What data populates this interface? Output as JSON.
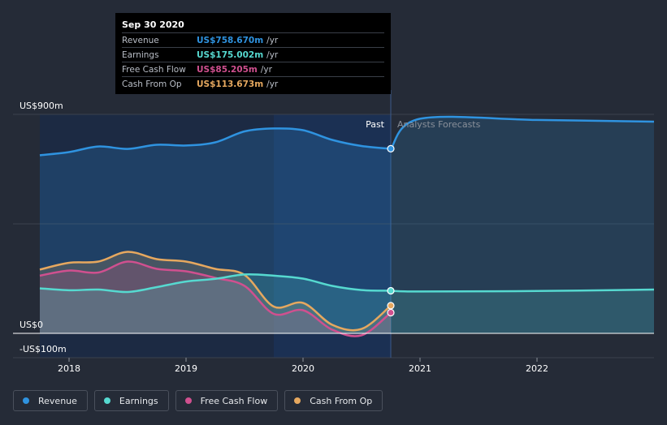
{
  "tooltip": {
    "date": "Sep 30 2020",
    "rows": [
      {
        "label": "Revenue",
        "value": "US$758.670m",
        "unit": "/yr",
        "color": "#2f93e0"
      },
      {
        "label": "Earnings",
        "value": "US$175.002m",
        "unit": "/yr",
        "color": "#56d9d0"
      },
      {
        "label": "Free Cash Flow",
        "value": "US$85.205m",
        "unit": "/yr",
        "color": "#d0508f"
      },
      {
        "label": "Cash From Op",
        "value": "US$113.673m",
        "unit": "/yr",
        "color": "#e6a85f"
      }
    ]
  },
  "legend": [
    {
      "label": "Revenue",
      "color": "#2f93e0"
    },
    {
      "label": "Earnings",
      "color": "#56d9d0"
    },
    {
      "label": "Free Cash Flow",
      "color": "#d0508f"
    },
    {
      "label": "Cash From Op",
      "color": "#e6a85f"
    }
  ],
  "chart_data": {
    "type": "area",
    "y_tick_labels": [
      "US$900m",
      "US$0",
      "-US$100m"
    ],
    "x_tick_labels": [
      "2018",
      "2019",
      "2020",
      "2021",
      "2022"
    ],
    "ylim": [
      -100,
      900
    ],
    "xlim": [
      2017.5,
      2023.0
    ],
    "past_label": "Past",
    "forecast_label": "Analysts Forecasts",
    "past_end": 2020.75,
    "grid": true,
    "legend_position": "bottom",
    "series": [
      {
        "name": "Revenue",
        "color": "#2f93e0",
        "x": [
          2017.75,
          2018.0,
          2018.25,
          2018.5,
          2018.75,
          2019.0,
          2019.25,
          2019.5,
          2019.75,
          2020.0,
          2020.25,
          2020.5,
          2020.75
        ],
        "values": [
          732,
          745,
          768,
          758,
          775,
          772,
          785,
          830,
          842,
          835,
          795,
          770,
          758.67
        ],
        "forecast_x": [
          2020.75,
          2021.0,
          2022.0,
          2023.0
        ],
        "forecast_values": [
          758.67,
          882,
          877,
          870
        ]
      },
      {
        "name": "Earnings",
        "color": "#56d9d0",
        "x": [
          2017.75,
          2018.0,
          2018.25,
          2018.5,
          2018.75,
          2019.0,
          2019.25,
          2019.5,
          2019.75,
          2020.0,
          2020.25,
          2020.5,
          2020.75
        ],
        "values": [
          185,
          177,
          180,
          170,
          190,
          213,
          224,
          242,
          237,
          225,
          195,
          178,
          175
        ],
        "forecast_x": [
          2020.75,
          2021.0,
          2022.0,
          2023.0
        ],
        "forecast_values": [
          175,
          172,
          174,
          180
        ]
      },
      {
        "name": "Free Cash Flow",
        "color": "#d0508f",
        "x": [
          2017.75,
          2018.0,
          2018.25,
          2018.5,
          2018.75,
          2019.0,
          2019.25,
          2019.5,
          2019.75,
          2020.0,
          2020.25,
          2020.5,
          2020.75
        ],
        "values": [
          237,
          258,
          250,
          295,
          265,
          255,
          228,
          195,
          80,
          95,
          15,
          -8,
          85.2
        ]
      },
      {
        "name": "Cash From Op",
        "color": "#e6a85f",
        "x": [
          2017.75,
          2018.0,
          2018.25,
          2018.5,
          2018.75,
          2019.0,
          2019.25,
          2019.5,
          2019.75,
          2020.0,
          2020.25,
          2020.5,
          2020.75
        ],
        "values": [
          262,
          290,
          295,
          335,
          305,
          295,
          265,
          240,
          110,
          125,
          35,
          18,
          113.7
        ]
      }
    ]
  }
}
